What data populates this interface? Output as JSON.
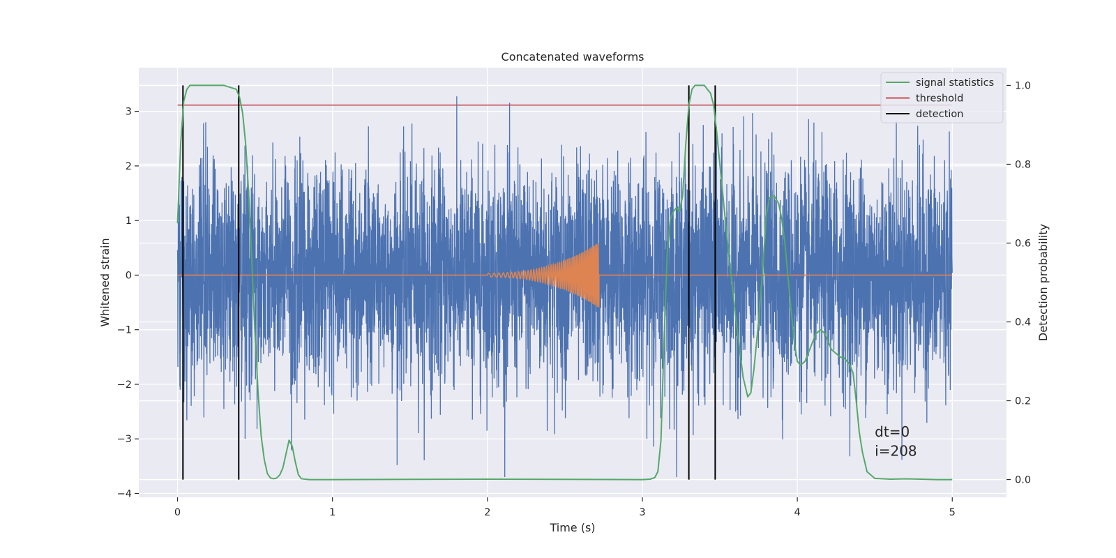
{
  "chart_data": {
    "type": "line",
    "title": "Concatenated waveforms",
    "xlabel": "Time (s)",
    "ylabel": "Whitened strain",
    "ylabel_right": "Detection probability",
    "xlim": [
      -0.25,
      5.35
    ],
    "ylim": [
      -4.07,
      3.8
    ],
    "ylim_right": [
      -0.045,
      1.045
    ],
    "xticks": [
      0,
      1,
      2,
      3,
      4,
      5
    ],
    "yticks": [
      -4,
      -3,
      -2,
      -1,
      0,
      1,
      2,
      3
    ],
    "yticks_right": [
      0.0,
      0.2,
      0.4,
      0.6,
      0.8,
      1.0
    ],
    "xtick_labels": [
      "0",
      "1",
      "2",
      "3",
      "4",
      "5"
    ],
    "ytick_labels": [
      "−4",
      "−3",
      "−2",
      "−1",
      "0",
      "1",
      "2",
      "3"
    ],
    "ytick_labels_right": [
      "0.0",
      "0.2",
      "0.4",
      "0.6",
      "0.8",
      "1.0"
    ],
    "grid": true,
    "legend_position": "top-right",
    "colors": {
      "noise": "#4c72b0",
      "template": "#dd8452",
      "signal_statistics": "#55a868",
      "threshold": "#c44e52",
      "detection": "#000000",
      "plot_bg": "#eaeaf2",
      "grid": "#ffffff"
    },
    "noise": {
      "description_axis": "left",
      "x_start": 0,
      "x_end": 5,
      "typical_amplitude": 1.0,
      "max": 3.45,
      "min": -3.7
    },
    "template": {
      "axis": "left",
      "x_start": 0,
      "x_end": 5,
      "chirp_start": 2.0,
      "chirp_end": 2.72,
      "peak_amplitude": 0.6
    },
    "series": [
      {
        "name": "signal statistics",
        "axis": "right",
        "x": [
          0.0,
          0.02,
          0.04,
          0.06,
          0.08,
          0.1,
          0.2,
          0.3,
          0.38,
          0.4,
          0.42,
          0.44,
          0.46,
          0.48,
          0.5,
          0.52,
          0.54,
          0.56,
          0.58,
          0.6,
          0.62,
          0.64,
          0.66,
          0.68,
          0.7,
          0.72,
          0.74,
          0.76,
          0.78,
          0.8,
          0.85,
          1.0,
          2.0,
          3.0,
          3.05,
          3.08,
          3.1,
          3.12,
          3.14,
          3.16,
          3.18,
          3.2,
          3.22,
          3.24,
          3.26,
          3.28,
          3.3,
          3.32,
          3.34,
          3.36,
          3.38,
          3.4,
          3.42,
          3.44,
          3.46,
          3.48,
          3.5,
          3.55,
          3.6,
          3.65,
          3.68,
          3.7,
          3.72,
          3.75,
          3.78,
          3.8,
          3.82,
          3.85,
          3.88,
          3.9,
          3.92,
          3.95,
          3.98,
          4.0,
          4.02,
          4.05,
          4.08,
          4.1,
          4.12,
          4.15,
          4.18,
          4.2,
          4.22,
          4.25,
          4.28,
          4.3,
          4.32,
          4.34,
          4.36,
          4.38,
          4.4,
          4.42,
          4.45,
          4.5,
          4.6,
          4.7,
          4.8,
          4.9,
          5.0
        ],
        "y": [
          0.65,
          0.85,
          0.96,
          0.99,
          1.0,
          1.0,
          1.0,
          1.0,
          0.99,
          0.97,
          0.93,
          0.85,
          0.72,
          0.55,
          0.37,
          0.22,
          0.11,
          0.05,
          0.015,
          0.004,
          0.002,
          0.004,
          0.012,
          0.03,
          0.065,
          0.1,
          0.085,
          0.045,
          0.012,
          0.002,
          0.0,
          0.0,
          0.001,
          0.0,
          0.001,
          0.005,
          0.02,
          0.1,
          0.35,
          0.57,
          0.66,
          0.68,
          0.69,
          0.68,
          0.72,
          0.85,
          0.95,
          0.99,
          1.0,
          1.0,
          1.0,
          1.0,
          0.99,
          0.98,
          0.95,
          0.88,
          0.8,
          0.6,
          0.42,
          0.26,
          0.21,
          0.22,
          0.28,
          0.4,
          0.55,
          0.67,
          0.715,
          0.72,
          0.7,
          0.66,
          0.6,
          0.47,
          0.35,
          0.3,
          0.29,
          0.3,
          0.33,
          0.35,
          0.37,
          0.38,
          0.37,
          0.35,
          0.33,
          0.32,
          0.31,
          0.31,
          0.3,
          0.29,
          0.27,
          0.2,
          0.12,
          0.07,
          0.02,
          0.003,
          0.001,
          0.002,
          0.001,
          0.0,
          0.0
        ]
      },
      {
        "name": "threshold",
        "axis": "right",
        "x": [
          0,
          5
        ],
        "y": [
          0.95,
          0.95
        ]
      },
      {
        "name": "detection",
        "axis": "right",
        "type": "vlines",
        "x": [
          0.035,
          0.395,
          3.3,
          3.47
        ],
        "ymin": 0.0,
        "ymax": 1.0
      }
    ],
    "annotations": [
      {
        "text": "dt=0",
        "x": 4.5,
        "y": -2.87
      },
      {
        "text": "i=208",
        "x": 4.5,
        "y": -3.22
      }
    ]
  }
}
